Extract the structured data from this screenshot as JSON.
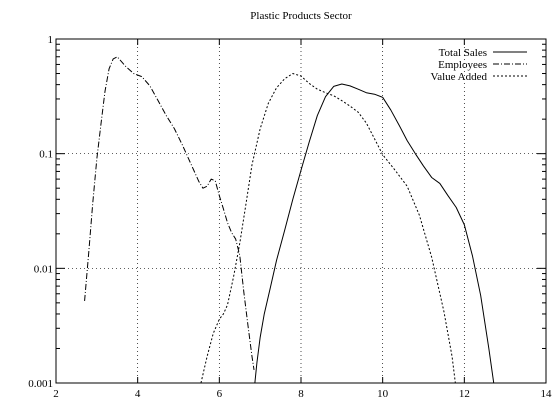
{
  "chart_data": {
    "type": "line",
    "title": "Plastic Products Sector",
    "xlabel": "",
    "ylabel": "",
    "xlim": [
      2,
      14
    ],
    "ylim": [
      0.001,
      1
    ],
    "yscale": "log",
    "grid": true,
    "legend_position": "top-right",
    "x_ticks": [
      "2",
      "4",
      "6",
      "8",
      "10",
      "12",
      "14"
    ],
    "y_ticks": [
      "0.001",
      "0.01",
      "0.1",
      "1"
    ],
    "series": [
      {
        "name": "Total Sales",
        "style": "solid",
        "color": "#000000",
        "x": [
          6.87,
          6.92,
          7.0,
          7.1,
          7.25,
          7.4,
          7.6,
          7.8,
          8.0,
          8.2,
          8.4,
          8.6,
          8.8,
          9.0,
          9.2,
          9.4,
          9.6,
          9.8,
          10.0,
          10.2,
          10.4,
          10.6,
          10.8,
          11.0,
          11.2,
          11.4,
          11.6,
          11.8,
          12.0,
          12.2,
          12.4,
          12.6,
          12.72
        ],
        "y": [
          0.001,
          0.0015,
          0.0025,
          0.004,
          0.0068,
          0.0117,
          0.0215,
          0.04,
          0.0717,
          0.126,
          0.215,
          0.314,
          0.386,
          0.405,
          0.39,
          0.365,
          0.34,
          0.33,
          0.31,
          0.24,
          0.178,
          0.13,
          0.1,
          0.078,
          0.062,
          0.055,
          0.043,
          0.034,
          0.024,
          0.0128,
          0.0058,
          0.002,
          0.001
        ]
      },
      {
        "name": "Employees",
        "style": "dash-dot",
        "color": "#000000",
        "x": [
          2.7,
          2.8,
          2.9,
          3.0,
          3.1,
          3.2,
          3.3,
          3.4,
          3.5,
          3.7,
          3.9,
          4.1,
          4.3,
          4.5,
          4.7,
          4.9,
          5.1,
          5.3,
          5.5,
          5.6,
          5.7,
          5.8,
          5.9,
          6.0,
          6.1,
          6.2,
          6.3,
          6.4,
          6.5,
          6.6,
          6.7,
          6.8,
          6.85
        ],
        "y": [
          0.0052,
          0.0135,
          0.037,
          0.09,
          0.18,
          0.35,
          0.55,
          0.67,
          0.7,
          0.58,
          0.5,
          0.47,
          0.39,
          0.29,
          0.215,
          0.165,
          0.118,
          0.082,
          0.057,
          0.05,
          0.052,
          0.06,
          0.058,
          0.043,
          0.033,
          0.025,
          0.0205,
          0.018,
          0.013,
          0.0062,
          0.0032,
          0.0017,
          0.0013
        ]
      },
      {
        "name": "Value Added",
        "style": "dotted",
        "color": "#000000",
        "x": [
          5.55,
          5.7,
          5.85,
          6.0,
          6.1,
          6.2,
          6.35,
          6.5,
          6.65,
          6.8,
          7.0,
          7.2,
          7.4,
          7.6,
          7.8,
          8.0,
          8.2,
          8.4,
          8.6,
          8.8,
          9.0,
          9.2,
          9.4,
          9.6,
          9.8,
          10.0,
          10.3,
          10.6,
          10.9,
          11.2,
          11.5,
          11.7,
          11.78
        ],
        "y": [
          0.001,
          0.0017,
          0.0027,
          0.0036,
          0.004,
          0.0048,
          0.0085,
          0.0165,
          0.036,
          0.08,
          0.165,
          0.275,
          0.375,
          0.45,
          0.5,
          0.475,
          0.41,
          0.365,
          0.34,
          0.32,
          0.29,
          0.26,
          0.23,
          0.185,
          0.135,
          0.098,
          0.072,
          0.052,
          0.029,
          0.0125,
          0.0042,
          0.0017,
          0.001
        ]
      }
    ]
  }
}
